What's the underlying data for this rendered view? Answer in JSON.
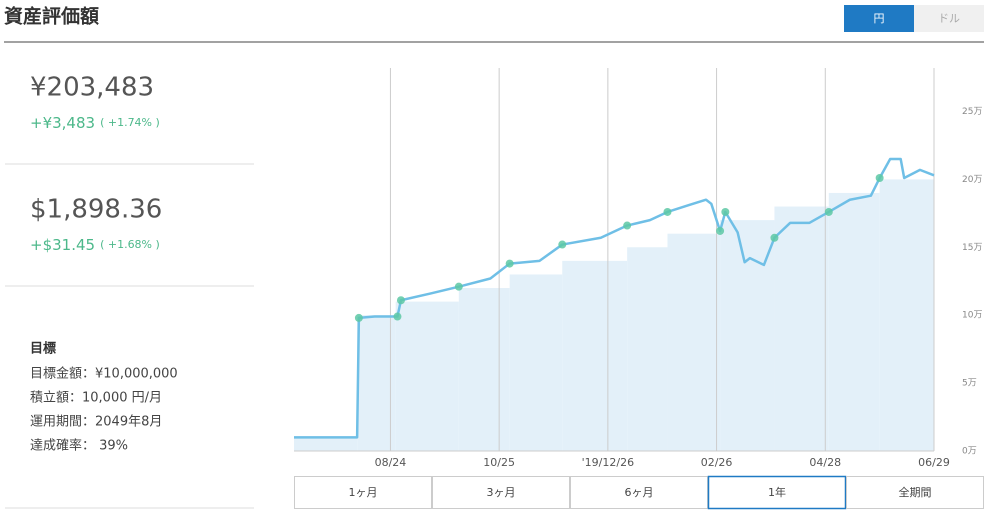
{
  "header": {
    "title": "資産評価額",
    "currency_buttons": [
      "円",
      "ドル"
    ]
  },
  "summary": [
    {
      "value": "¥203,483",
      "change": "+¥3,483",
      "percent": "( +1.74% )"
    },
    {
      "value": "$1,898.36",
      "change": "+$31.45",
      "percent": "( +1.68% )"
    }
  ],
  "goal": {
    "title": "目標",
    "items": [
      "目標金額：¥10,000,000",
      "積立額：10,000 円/月",
      "運用期間：2049年8月",
      "達成確率： 39%"
    ]
  },
  "range_buttons": {
    "labels": [
      "1ヶ月",
      "3ヶ月",
      "6ヶ月",
      "1年",
      "全期間"
    ],
    "selected": 3
  },
  "chart_data": {
    "type": "line",
    "xlim": [
      0,
      365
    ],
    "xticks": [
      {
        "value": 55,
        "label": "08/24"
      },
      {
        "value": 117,
        "label": "10/25"
      },
      {
        "value": 179,
        "label": "'19/12/26"
      },
      {
        "value": 241,
        "label": "02/26"
      },
      {
        "value": 303,
        "label": "04/28"
      },
      {
        "value": 365,
        "label": "06/29"
      }
    ],
    "ylim": [
      0,
      28.2
    ],
    "yticks": [
      {
        "value": 0,
        "label": "0万"
      },
      {
        "value": 5,
        "label": "5万"
      },
      {
        "value": 10,
        "label": "10万"
      },
      {
        "value": 15,
        "label": "15万"
      },
      {
        "value": 20,
        "label": "20万"
      },
      {
        "value": 25,
        "label": "25万"
      }
    ],
    "grid": true,
    "series": [
      {
        "type": "area",
        "color": "#e3f0f9",
        "x": [
          0,
          36,
          58,
          94,
          123,
          153,
          190,
          213,
          243,
          274,
          305,
          334
        ],
        "values": [
          1,
          10,
          11,
          12,
          13,
          14,
          15,
          16,
          17,
          18,
          19,
          20
        ]
      },
      {
        "type": "line",
        "color": "#6fbfe6",
        "x": [
          0,
          36,
          37,
          46,
          59,
          61,
          78,
          94,
          112,
          123,
          140,
          153,
          175,
          190,
          203,
          213,
          225,
          235,
          238,
          243,
          246,
          253,
          257,
          260,
          268,
          274,
          283,
          294,
          305,
          317,
          329,
          334,
          340,
          346,
          348,
          357,
          365
        ],
        "values": [
          1.0,
          1.0,
          9.8,
          9.9,
          9.9,
          11.1,
          11.6,
          12.1,
          12.7,
          13.8,
          14.0,
          15.2,
          15.7,
          16.6,
          17.0,
          17.6,
          18.1,
          18.5,
          18.2,
          16.2,
          17.6,
          16.1,
          13.9,
          14.2,
          13.7,
          15.7,
          16.8,
          16.8,
          17.6,
          18.5,
          18.8,
          20.1,
          21.5,
          21.5,
          20.1,
          20.7,
          20.3
        ]
      },
      {
        "type": "scatter",
        "color": "#5dc8a5",
        "x": [
          37,
          59,
          61,
          94,
          123,
          153,
          190,
          213,
          243,
          246,
          274,
          305,
          334
        ],
        "values": [
          9.8,
          9.9,
          11.1,
          12.1,
          13.8,
          15.2,
          16.6,
          17.6,
          16.2,
          17.6,
          15.7,
          17.6,
          20.1
        ]
      }
    ]
  }
}
